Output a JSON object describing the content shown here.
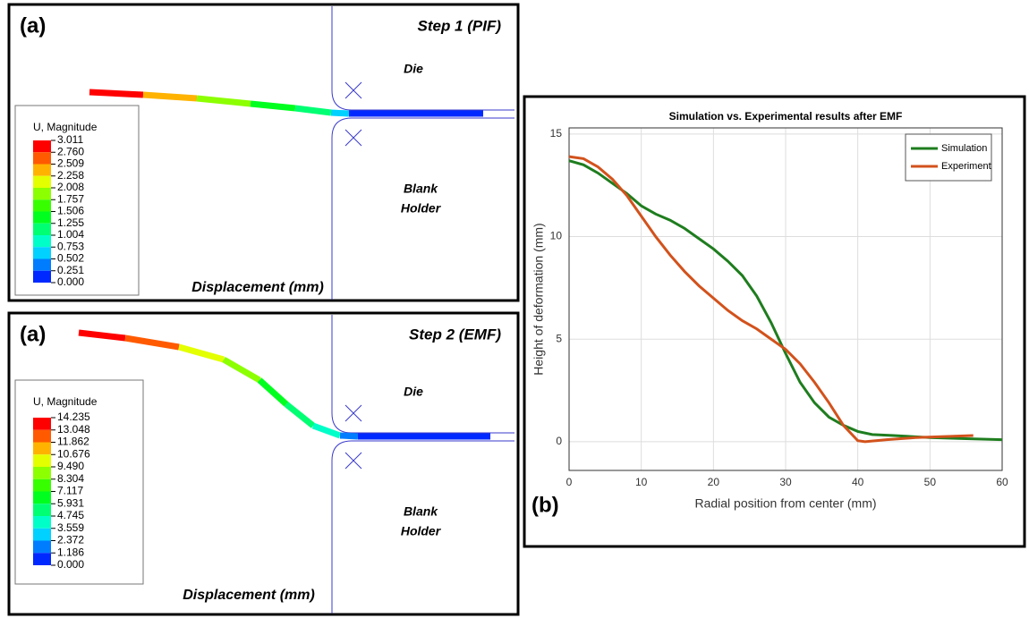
{
  "panels": [
    {
      "label": "(a)",
      "title": "Step 1 (PIF)",
      "die": "Die",
      "holder": [
        "Blank",
        "Holder"
      ],
      "legend_title": "U, Magnitude",
      "legend_values": [
        "3.011",
        "2.760",
        "2.509",
        "2.258",
        "2.008",
        "1.757",
        "1.506",
        "1.255",
        "1.004",
        "0.753",
        "0.502",
        "0.251",
        "0.000"
      ],
      "xlabel": "Displacement (mm)"
    },
    {
      "label": "(a)",
      "title": "Step 2 (EMF)",
      "die": "Die",
      "holder": [
        "Blank",
        "Holder"
      ],
      "legend_title": "U, Magnitude",
      "legend_values": [
        "14.235",
        "13.048",
        "11.862",
        "10.676",
        "9.490",
        "8.304",
        "7.117",
        "5.931",
        "4.745",
        "3.559",
        "2.372",
        "1.186",
        "0.000"
      ],
      "xlabel": "Displacement (mm)"
    }
  ],
  "chart_data": {
    "type": "line",
    "title": "Simulation vs. Experimental results after EMF",
    "panel_label": "(b)",
    "xlabel": "Radial position from center (mm)",
    "ylabel": "Height of deformation (mm)",
    "xlim": [
      0,
      60
    ],
    "ylim": [
      -1.4,
      15.3
    ],
    "xticks": [
      0,
      10,
      20,
      30,
      40,
      50,
      60
    ],
    "yticks": [
      0,
      5,
      10,
      15
    ],
    "grid": true,
    "legend": "upper right",
    "series": [
      {
        "name": "Simulation",
        "color": "#1e7d1e",
        "x": [
          0,
          2,
          4,
          6,
          8,
          10,
          12,
          14,
          16,
          18,
          20,
          22,
          24,
          26,
          28,
          30,
          32,
          34,
          36,
          38,
          40,
          42,
          45,
          50,
          55,
          60
        ],
        "values": [
          13.7,
          13.5,
          13.1,
          12.6,
          12.1,
          11.5,
          11.1,
          10.8,
          10.4,
          9.9,
          9.4,
          8.8,
          8.1,
          7.1,
          5.8,
          4.3,
          2.9,
          1.9,
          1.2,
          0.8,
          0.5,
          0.35,
          0.3,
          0.2,
          0.15,
          0.1
        ]
      },
      {
        "name": "Experiment",
        "color": "#d2521c",
        "x": [
          0,
          2,
          4,
          6,
          8,
          10,
          12,
          14,
          16,
          18,
          20,
          22,
          24,
          26,
          28,
          30,
          32,
          34,
          36,
          38,
          40,
          41,
          44,
          48,
          52,
          56
        ],
        "values": [
          13.9,
          13.8,
          13.4,
          12.8,
          12.0,
          11.0,
          10.0,
          9.1,
          8.3,
          7.6,
          7.0,
          6.4,
          5.9,
          5.5,
          5.0,
          4.5,
          3.8,
          2.9,
          1.9,
          0.8,
          0.05,
          0,
          0.1,
          0.2,
          0.25,
          0.3
        ]
      }
    ]
  }
}
